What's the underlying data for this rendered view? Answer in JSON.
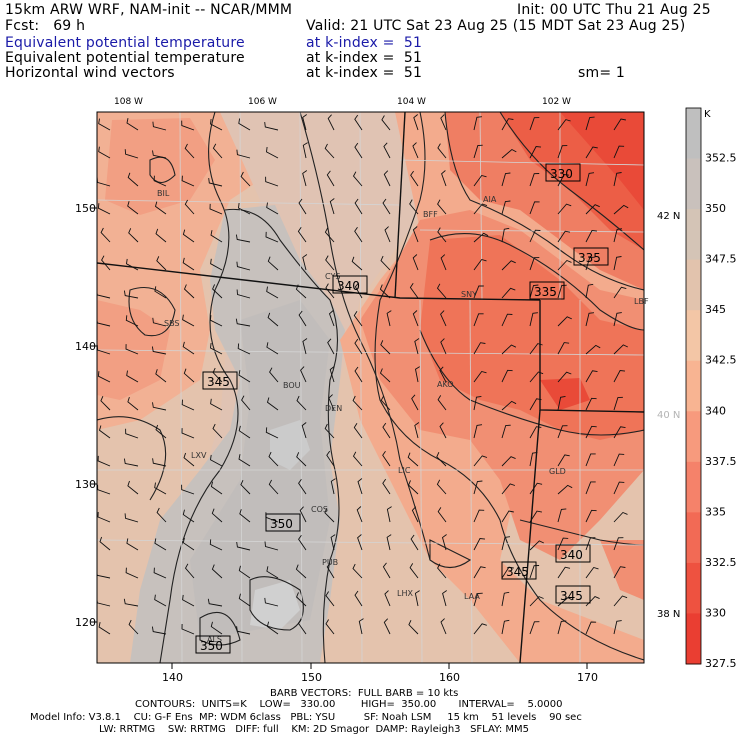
{
  "header": {
    "model_line": "15km ARW WRF, NAM-init -- NCAR/MMM",
    "init_line": "Init: 00 UTC Thu 21 Aug 25",
    "fcst_line": "Fcst:   69 h",
    "valid_line": "Valid: 21 UTC Sat 23 Aug 25 (15 MDT Sat 23 Aug 25)",
    "fields": [
      {
        "name": "Equivalent potential temperature",
        "level": "at k-index =  51",
        "highlight": true
      },
      {
        "name": "Equivalent potential temperature",
        "level": "at k-index =  51",
        "highlight": false
      },
      {
        "name": "Horizontal wind vectors",
        "level": "at k-index =  51",
        "highlight": false
      }
    ],
    "smoothing": "sm= 1"
  },
  "map": {
    "top_lon_labels": [
      "108 W",
      "106 W",
      "104 W",
      "102 W"
    ],
    "left_ticks": [
      "150",
      "140",
      "130",
      "120"
    ],
    "bottom_ticks": [
      "140",
      "150",
      "160",
      "170"
    ],
    "right_lat_labels": [
      {
        "text": "42 N",
        "color": "#000000"
      },
      {
        "text": "40 N",
        "color": "#b4b4b4"
      },
      {
        "text": "38 N",
        "color": "#000000"
      }
    ],
    "stations": [
      "BIL",
      "BFF",
      "AIA",
      "SBS",
      "CYS",
      "SNY",
      "LBF",
      "BOU",
      "DEN",
      "AKO",
      "LXV",
      "LIC",
      "GLD",
      "COS",
      "PUB",
      "LHX",
      "LAA",
      "ALS"
    ],
    "contour_labels": [
      "330",
      "335",
      "340",
      "335",
      "345",
      "350",
      "340",
      "345",
      "345",
      "350"
    ]
  },
  "colorbar": {
    "unit": "K",
    "colors": [
      "#bfbfbf",
      "#c9c1bc",
      "#d4c4b6",
      "#e2c3ad",
      "#f3c6a6",
      "#f8b492",
      "#f79a7d",
      "#f5826a",
      "#f26a55",
      "#ee5240",
      "#ea3e32"
    ],
    "labels": [
      "352.5",
      "350",
      "347.5",
      "345",
      "342.5",
      "340",
      "337.5",
      "335",
      "332.5",
      "330",
      "327.5"
    ]
  },
  "footer": {
    "barb_line": "BARB VECTORS:  FULL BARB = 10 kts",
    "contour_line": "CONTOURS:  UNITS=K    LOW=   330.00        HIGH=  350.00       INTERVAL=    5.0000",
    "model_info_line": "Model Info: V3.8.1    CU: G-F Ens  MP: WDM 6class   PBL: YSU         SF: Noah LSM     15 km    51 levels    90 sec",
    "rad_line": "LW: RRTMG    SW: RRTMG   DIFF: full    KM: 2D Smagor  DAMP: Rayleigh3   SFLAY: MM5"
  }
}
